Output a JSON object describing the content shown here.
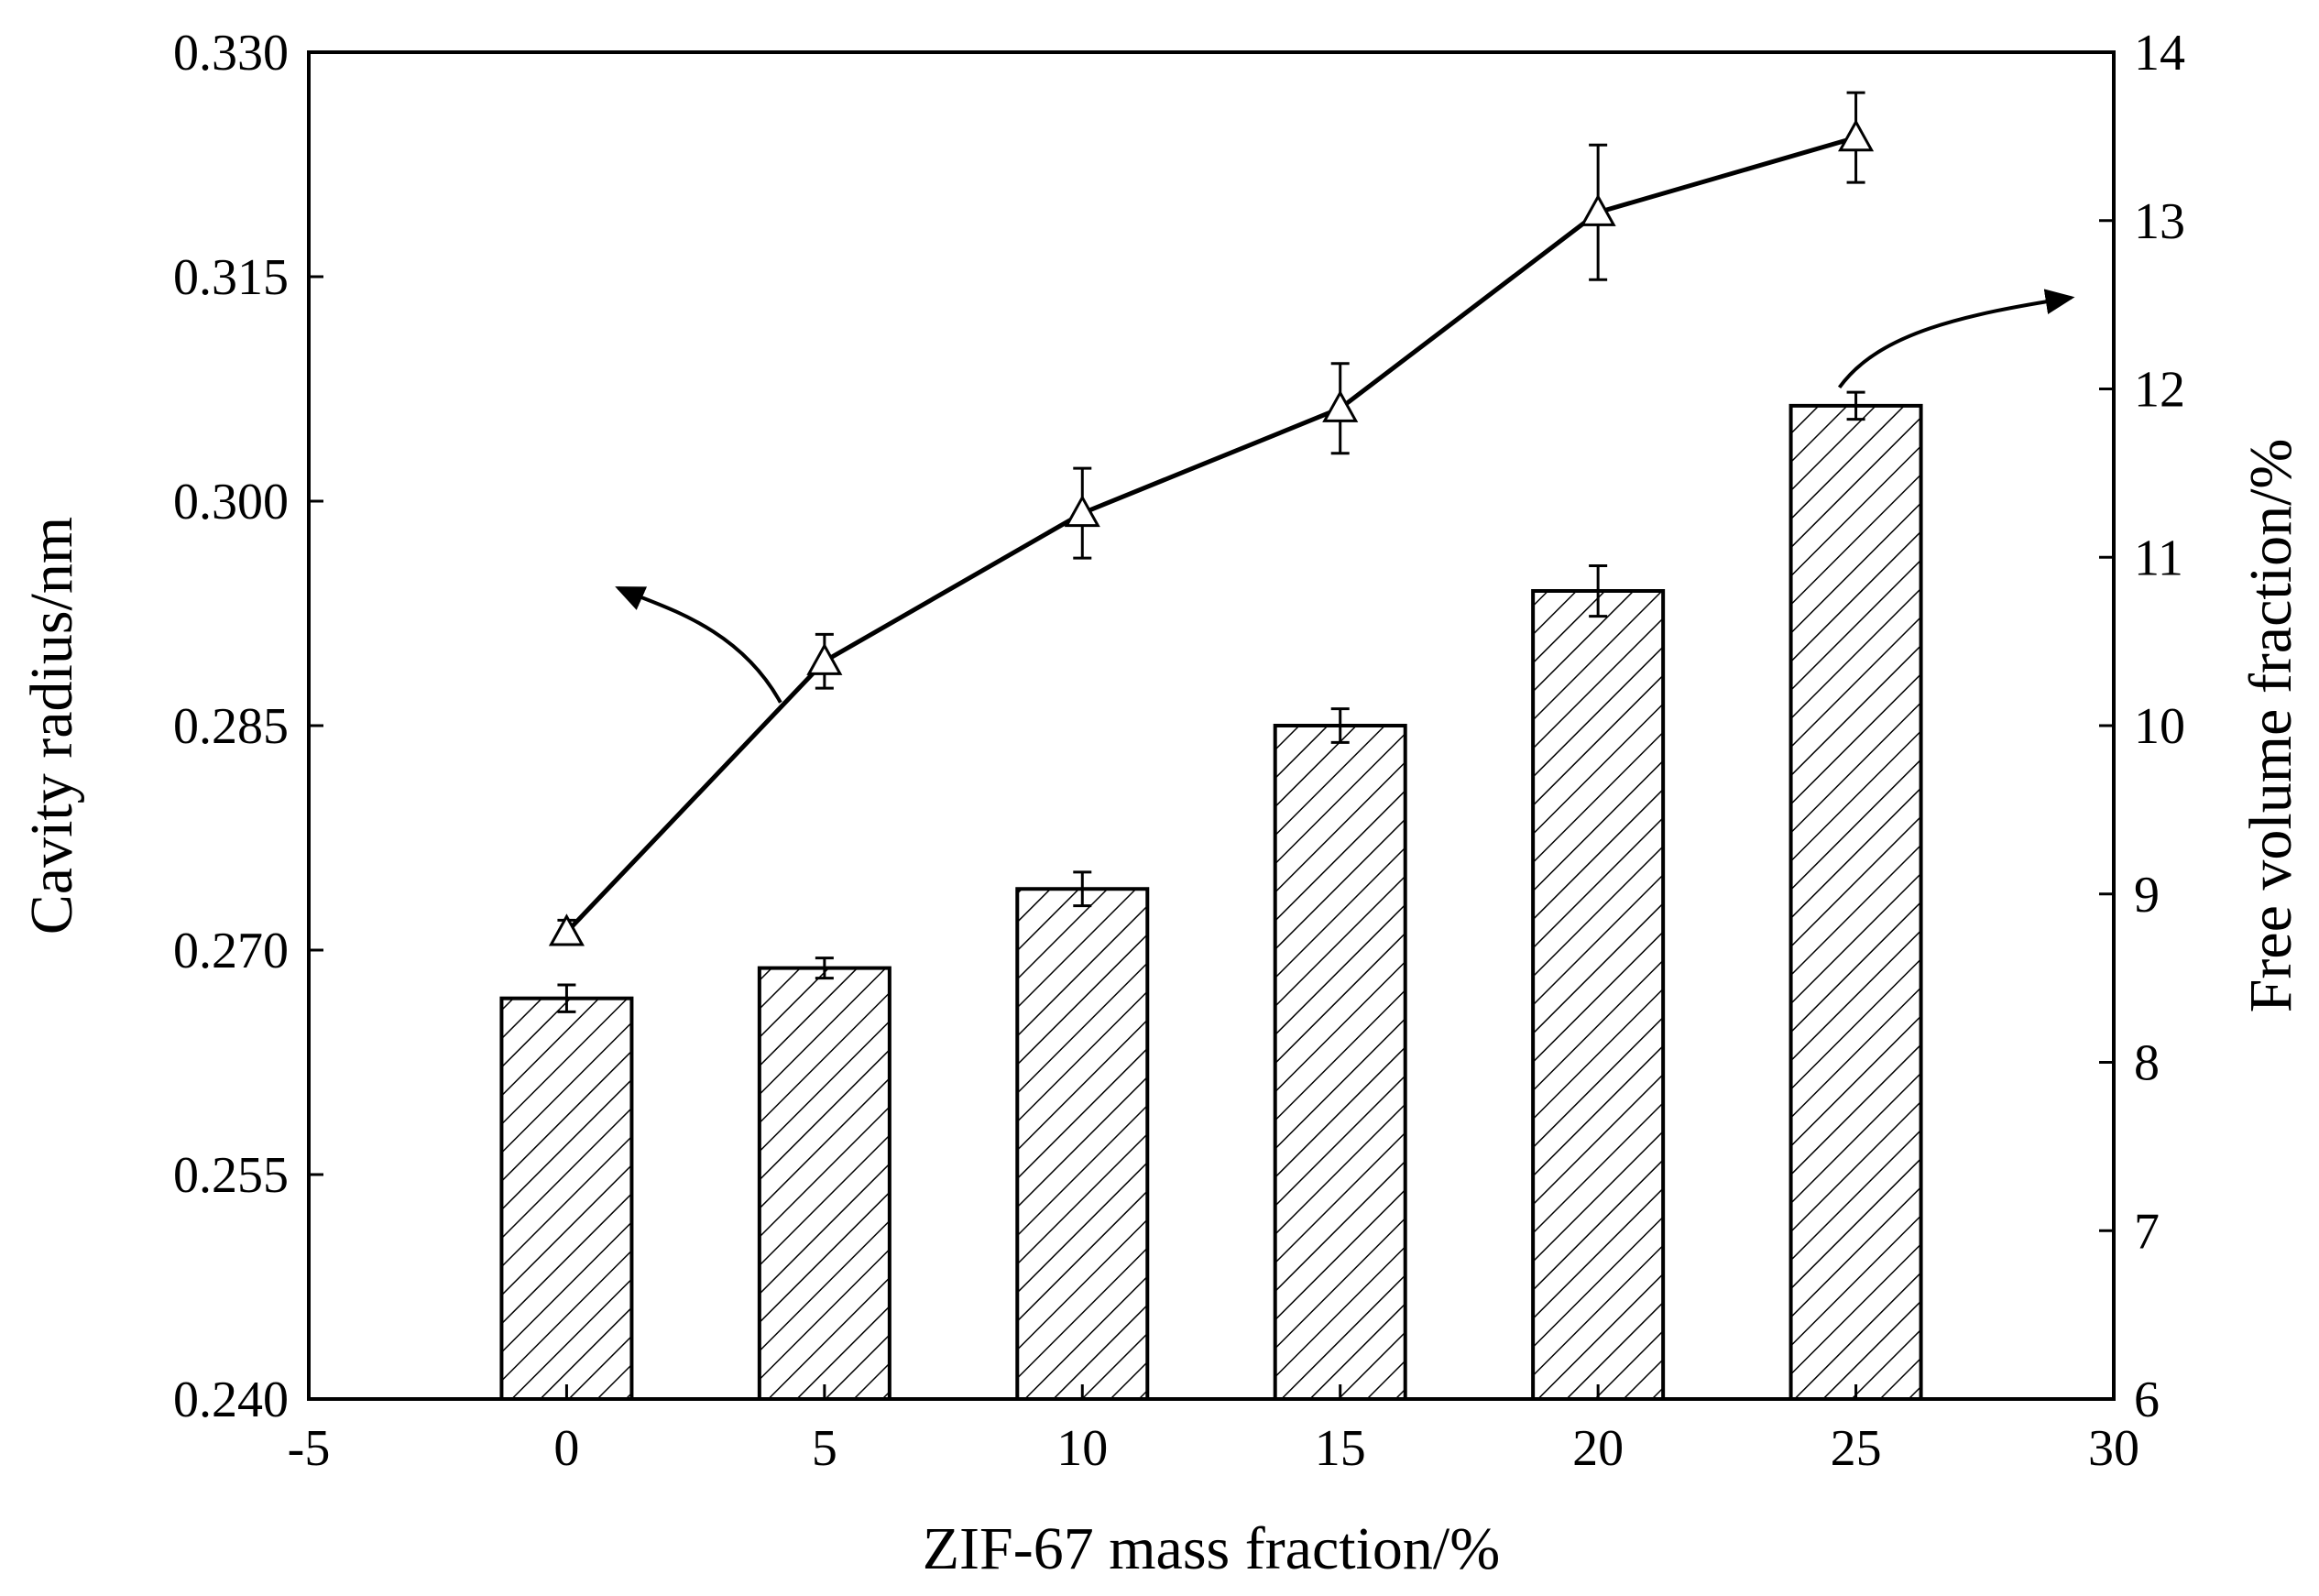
{
  "chart_data": {
    "type": "bar+line",
    "x_axis": {
      "label": "ZIF-67 mass fraction/%",
      "range": [
        -5,
        30
      ],
      "ticks": [
        -5,
        0,
        5,
        10,
        15,
        20,
        25,
        30
      ],
      "tick_labels": [
        "-5",
        "0",
        "5",
        "10",
        "15",
        "20",
        "25",
        "30"
      ]
    },
    "left_axis": {
      "label": "Cavity radius/nm",
      "range": [
        0.24,
        0.33
      ],
      "ticks": [
        0.24,
        0.255,
        0.27,
        0.285,
        0.3,
        0.315,
        0.33
      ],
      "tick_labels": [
        "0.240",
        "0.255",
        "0.270",
        "0.285",
        "0.300",
        "0.315",
        "0.330"
      ]
    },
    "right_axis": {
      "label": "Free volume fraction/%",
      "range": [
        6,
        14
      ],
      "ticks": [
        6,
        7,
        8,
        9,
        10,
        11,
        12,
        13,
        14
      ],
      "tick_labels": [
        "6",
        "7",
        "8",
        "9",
        "10",
        "11",
        "12",
        "13",
        "14"
      ]
    },
    "series": [
      {
        "name": "Free volume fraction",
        "kind": "bar",
        "axis": "right",
        "pattern": "diagonal-hatch",
        "x": [
          0,
          5,
          10,
          15,
          20,
          25
        ],
        "values": [
          8.38,
          8.56,
          9.03,
          10.0,
          10.8,
          11.9
        ],
        "errors": [
          0.08,
          0.06,
          0.1,
          0.1,
          0.15,
          0.08
        ]
      },
      {
        "name": "Cavity radius",
        "kind": "line",
        "axis": "left",
        "marker": "open-triangle",
        "x": [
          0,
          5,
          10,
          15,
          20,
          25
        ],
        "values": [
          0.2712,
          0.2893,
          0.2992,
          0.3062,
          0.3193,
          0.3243
        ],
        "errors": [
          0.0008,
          0.0018,
          0.003,
          0.003,
          0.0045,
          0.003
        ]
      }
    ],
    "annotations": [
      {
        "type": "curved-arrow",
        "from": "Cavity radius line",
        "points_to": "left axis"
      },
      {
        "type": "curved-arrow",
        "from": "Free volume fraction bars",
        "points_to": "right axis"
      }
    ]
  }
}
